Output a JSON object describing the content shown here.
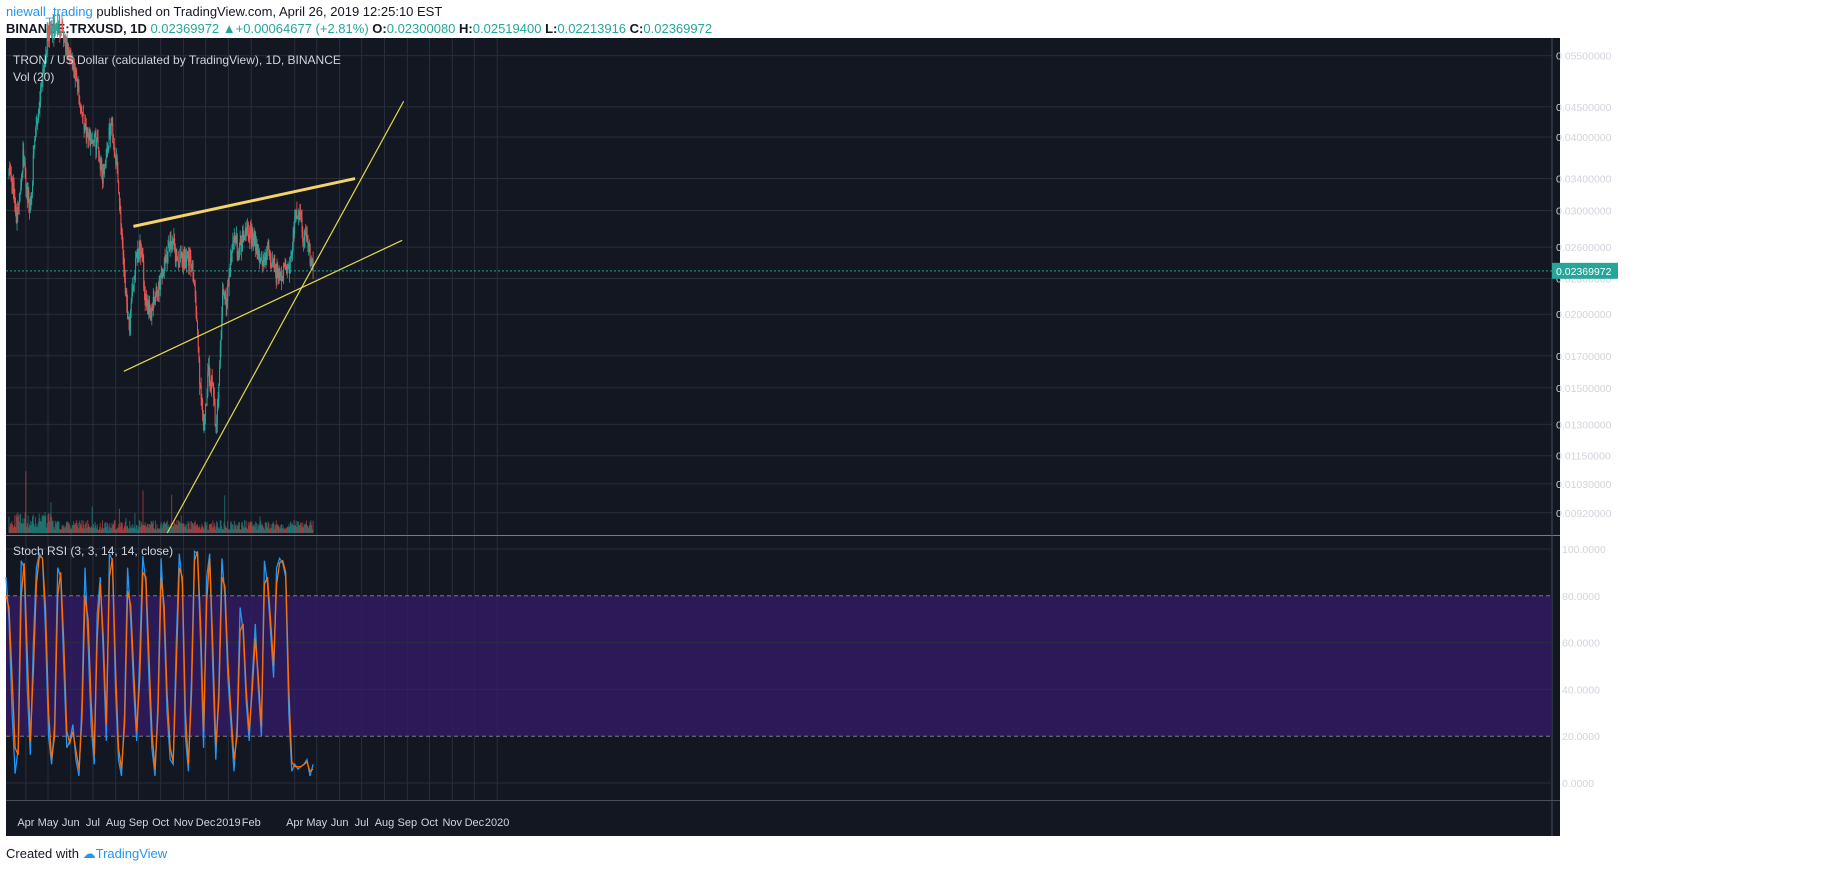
{
  "header": {
    "author": "niewall_trading",
    "published_text": "published on TradingView.com, April 26, 2019 12:25:10 EST",
    "symbol": "BINANCE:TRXUSD, 1D",
    "last": "0.02369972",
    "change": "+0.00064677 (+2.81%)",
    "open_label": "O:",
    "open": "0.02300080",
    "high_label": "H:",
    "high": "0.02519400",
    "low_label": "L:",
    "low": "0.02213916",
    "close_label": "C:",
    "close": "0.02369972"
  },
  "footer": {
    "created_with": "Created with",
    "brand": "TradingView"
  },
  "colors": {
    "background": "#131722",
    "grid": "#2a2e39",
    "up": "#26a69a",
    "down": "#ef5350",
    "trendline": "#e5d94a",
    "trendline_bold": "#f5d36b",
    "stoch_k": "#2196f3",
    "stoch_d": "#ff6d00",
    "stoch_band": "#311b62",
    "price_tag": "#26a69a"
  },
  "chart_data": [
    {
      "type": "candlestick",
      "title": "TRON / US Dollar (calculated by TradingView), 1D, BINANCE",
      "volume_label": "Vol (20)",
      "scale": "log",
      "ylim": [
        0.0085,
        0.058
      ],
      "y_ticks": [
        "0.05500000",
        "0.04500000",
        "0.04000000",
        "0.03400000",
        "0.03000000",
        "0.02600000",
        "0.02300000",
        "0.02000000",
        "0.01700000",
        "0.01500000",
        "0.01300000",
        "0.01150000",
        "0.01030000",
        "0.00920000"
      ],
      "current_price": "0.02369972",
      "x_ticks": [
        "Apr",
        "May",
        "Jun",
        "Jul",
        "Aug",
        "Sep",
        "Oct",
        "Nov",
        "Dec",
        "2019",
        "Feb",
        "Apr",
        "May",
        "Jun",
        "Jul",
        "Aug",
        "Sep",
        "Oct",
        "Nov",
        "Dec",
        "2020"
      ],
      "close_path": [
        [
          "2018-03-09",
          0.0365
        ],
        [
          "2018-03-20",
          0.029
        ],
        [
          "2018-03-28",
          0.037
        ],
        [
          "2018-04-06",
          0.03
        ],
        [
          "2018-04-14",
          0.04
        ],
        [
          "2018-04-24",
          0.052
        ],
        [
          "2018-05-01",
          0.06
        ],
        [
          "2018-05-20",
          0.062
        ],
        [
          "2018-05-27",
          0.056
        ],
        [
          "2018-06-01",
          0.054
        ],
        [
          "2018-06-08",
          0.05
        ],
        [
          "2018-06-16",
          0.044
        ],
        [
          "2018-06-25",
          0.04
        ],
        [
          "2018-07-06",
          0.0395
        ],
        [
          "2018-07-14",
          0.0345
        ],
        [
          "2018-07-20",
          0.038
        ],
        [
          "2018-07-26",
          0.042
        ],
        [
          "2018-08-01",
          0.037
        ],
        [
          "2018-08-07",
          0.03
        ],
        [
          "2018-08-15",
          0.0215
        ],
        [
          "2018-08-20",
          0.019
        ],
        [
          "2018-08-27",
          0.024
        ],
        [
          "2018-09-04",
          0.026
        ],
        [
          "2018-09-10",
          0.0215
        ],
        [
          "2018-09-18",
          0.02
        ],
        [
          "2018-09-25",
          0.0215
        ],
        [
          "2018-10-05",
          0.024
        ],
        [
          "2018-10-15",
          0.027
        ],
        [
          "2018-10-25",
          0.0245
        ],
        [
          "2018-11-05",
          0.025
        ],
        [
          "2018-11-15",
          0.0235
        ],
        [
          "2018-11-20",
          0.0185
        ],
        [
          "2018-11-25",
          0.014
        ],
        [
          "2018-11-30",
          0.013
        ],
        [
          "2018-12-05",
          0.016
        ],
        [
          "2018-12-10",
          0.015
        ],
        [
          "2018-12-15",
          0.013
        ],
        [
          "2018-12-20",
          0.016
        ],
        [
          "2018-12-24",
          0.0215
        ],
        [
          "2018-12-29",
          0.021
        ],
        [
          "2019-01-03",
          0.024
        ],
        [
          "2019-01-08",
          0.0275
        ],
        [
          "2019-01-15",
          0.0255
        ],
        [
          "2019-01-25",
          0.0285
        ],
        [
          "2019-02-05",
          0.0265
        ],
        [
          "2019-02-15",
          0.0245
        ],
        [
          "2019-02-25",
          0.0255
        ],
        [
          "2019-03-05",
          0.0235
        ],
        [
          "2019-03-15",
          0.0235
        ],
        [
          "2019-03-25",
          0.024
        ],
        [
          "2019-04-01",
          0.0285
        ],
        [
          "2019-04-06",
          0.03
        ],
        [
          "2019-04-12",
          0.0275
        ],
        [
          "2019-04-19",
          0.0265
        ],
        [
          "2019-04-26",
          0.0237
        ]
      ],
      "trendlines": [
        {
          "name": "upper-resistance",
          "points": [
            [
              "2018-08-25",
              0.0282
            ],
            [
              "2019-06-22",
              0.034
            ]
          ]
        },
        {
          "name": "lower-support",
          "points": [
            [
              "2018-08-12",
              0.016
            ],
            [
              "2019-08-25",
              0.0267
            ]
          ]
        },
        {
          "name": "rising-support",
          "points": [
            [
              "2018-10-10",
              0.0085
            ],
            [
              "2019-08-27",
              0.046
            ]
          ]
        }
      ]
    },
    {
      "type": "line",
      "title": "Stoch RSI (3, 3, 14, 14, close)",
      "ylim": [
        0,
        100
      ],
      "y_ticks": [
        "100.0000",
        "80.0000",
        "60.0000",
        "40.0000",
        "20.0000",
        "0.0000"
      ],
      "band": [
        20,
        80
      ],
      "series": [
        {
          "name": "K",
          "values": [
            88,
            70,
            30,
            4,
            15,
            95,
            92,
            40,
            12,
            60,
            92,
            98,
            96,
            65,
            20,
            8,
            25,
            92,
            88,
            50,
            15,
            18,
            25,
            10,
            3,
            35,
            92,
            60,
            25,
            8,
            72,
            88,
            55,
            18,
            98,
            95,
            40,
            10,
            3,
            30,
            92,
            70,
            40,
            18,
            55,
            97,
            85,
            45,
            15,
            3,
            35,
            96,
            70,
            30,
            10,
            8,
            60,
            98,
            85,
            20,
            5,
            45,
            99,
            98,
            60,
            15,
            88,
            98,
            50,
            10,
            40,
            96,
            80,
            45,
            25,
            5,
            25,
            75,
            65,
            35,
            18,
            45,
            68,
            40,
            20,
            95,
            85,
            65,
            45,
            92,
            96,
            94,
            88,
            30,
            5,
            8,
            6,
            7,
            8,
            10,
            3,
            8
          ]
        },
        {
          "name": "D",
          "values": [
            80,
            75,
            45,
            15,
            12,
            80,
            94,
            55,
            18,
            48,
            85,
            97,
            96,
            75,
            30,
            10,
            20,
            80,
            90,
            60,
            22,
            17,
            22,
            14,
            6,
            28,
            80,
            70,
            35,
            12,
            62,
            85,
            62,
            25,
            88,
            96,
            50,
            15,
            6,
            25,
            82,
            76,
            48,
            22,
            45,
            90,
            88,
            55,
            22,
            6,
            30,
            88,
            76,
            38,
            15,
            9,
            50,
            92,
            88,
            30,
            8,
            38,
            95,
            99,
            68,
            22,
            78,
            96,
            60,
            16,
            35,
            88,
            84,
            52,
            30,
            10,
            20,
            65,
            68,
            40,
            22,
            40,
            62,
            45,
            24,
            85,
            88,
            70,
            50,
            85,
            94,
            95,
            90,
            40,
            9,
            7,
            7,
            7,
            8,
            9,
            5,
            6
          ]
        }
      ]
    }
  ]
}
